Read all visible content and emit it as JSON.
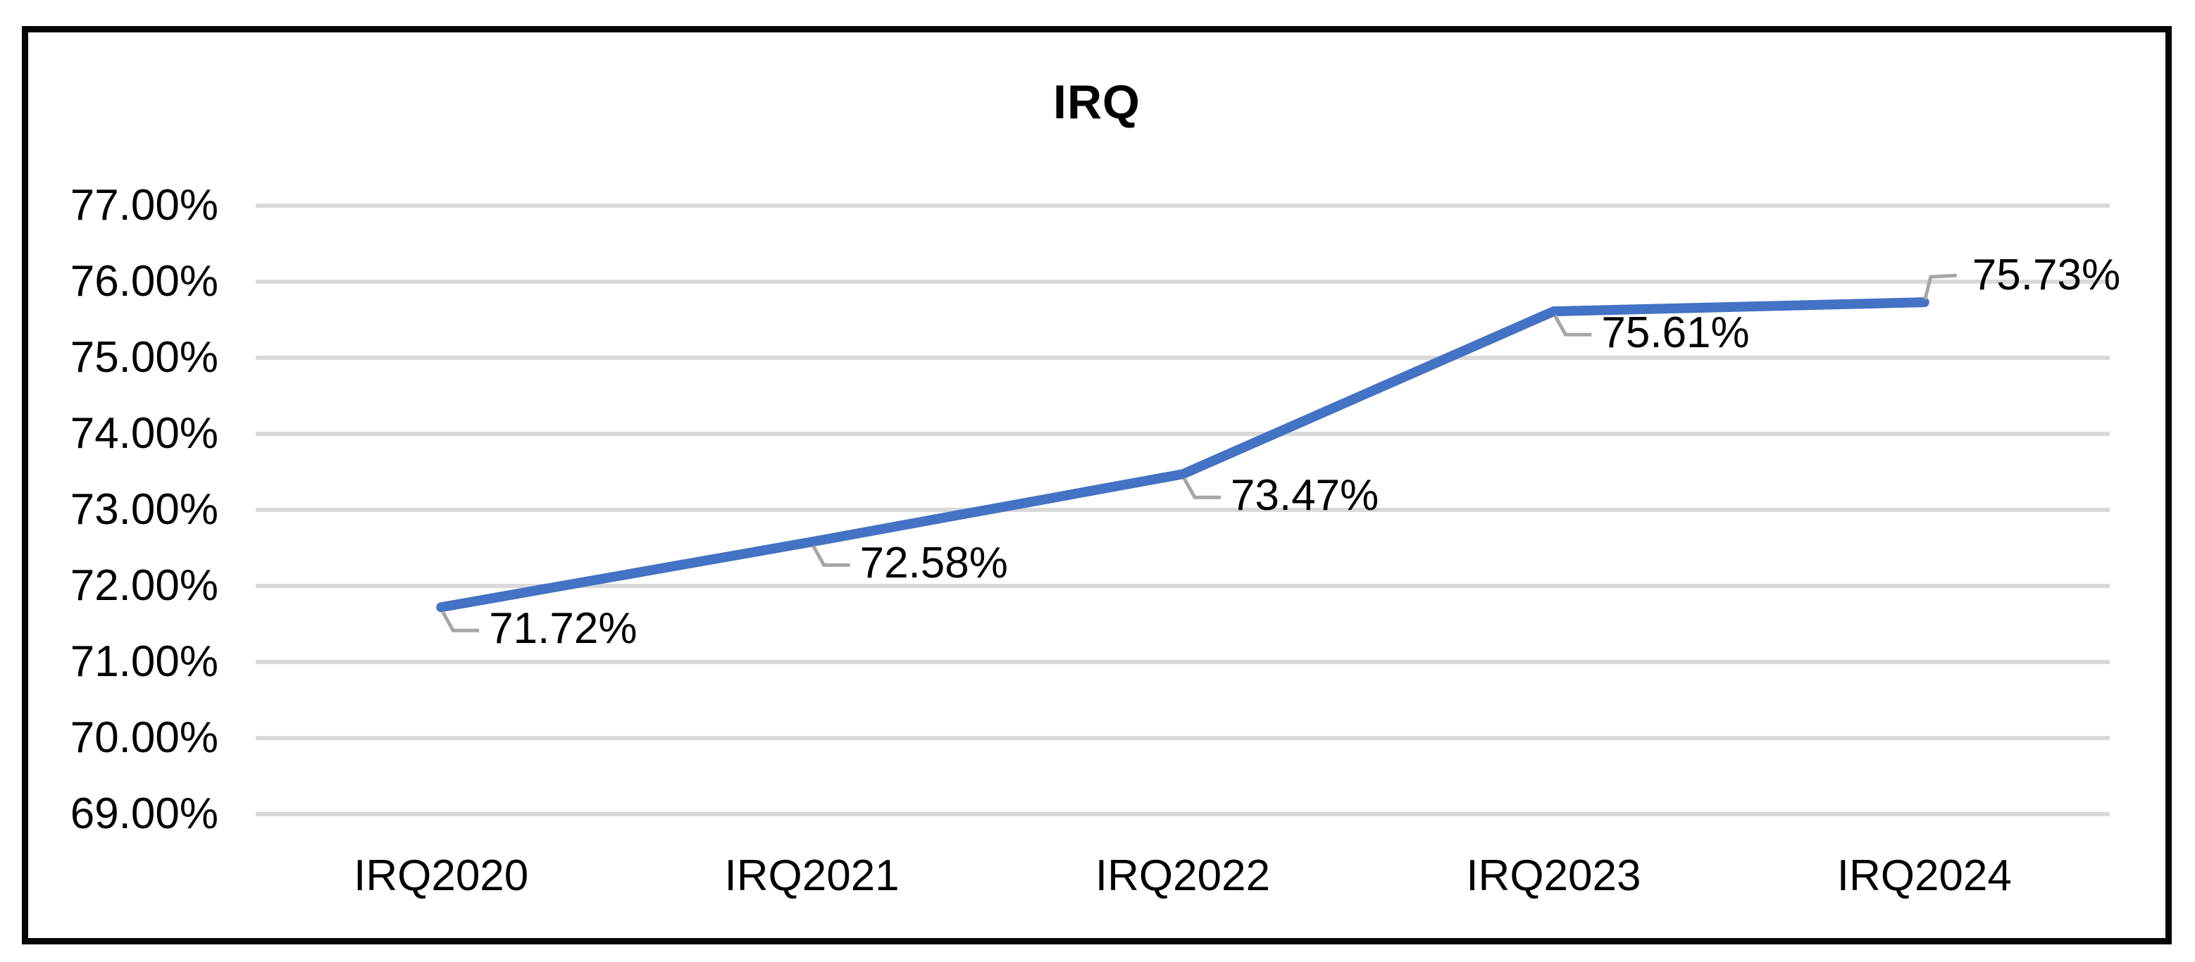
{
  "chart_data": {
    "type": "line",
    "title": "IRQ",
    "categories": [
      "IRQ2020",
      "IRQ2021",
      "IRQ2022",
      "IRQ2023",
      "IRQ2024"
    ],
    "series": [
      {
        "name": "IRQ",
        "values": [
          71.72,
          72.58,
          73.47,
          75.61,
          75.73
        ]
      }
    ],
    "data_labels": [
      "71.72%",
      "72.58%",
      "73.47%",
      "75.61%",
      "75.73%"
    ],
    "label_positions": [
      "below",
      "below",
      "below",
      "below",
      "above"
    ],
    "y_ticks": [
      "77.00%",
      "76.00%",
      "75.00%",
      "74.00%",
      "73.00%",
      "72.00%",
      "71.00%",
      "70.00%",
      "69.00%"
    ],
    "ylim": [
      69,
      77
    ],
    "y_tick_step": 1,
    "grid": true,
    "legend": "none",
    "colors": {
      "line": "#4472C4",
      "gridline": "#D9D9D9",
      "leader": "#A6A6A6",
      "text": "#000000",
      "frame_border": "#060606"
    }
  }
}
